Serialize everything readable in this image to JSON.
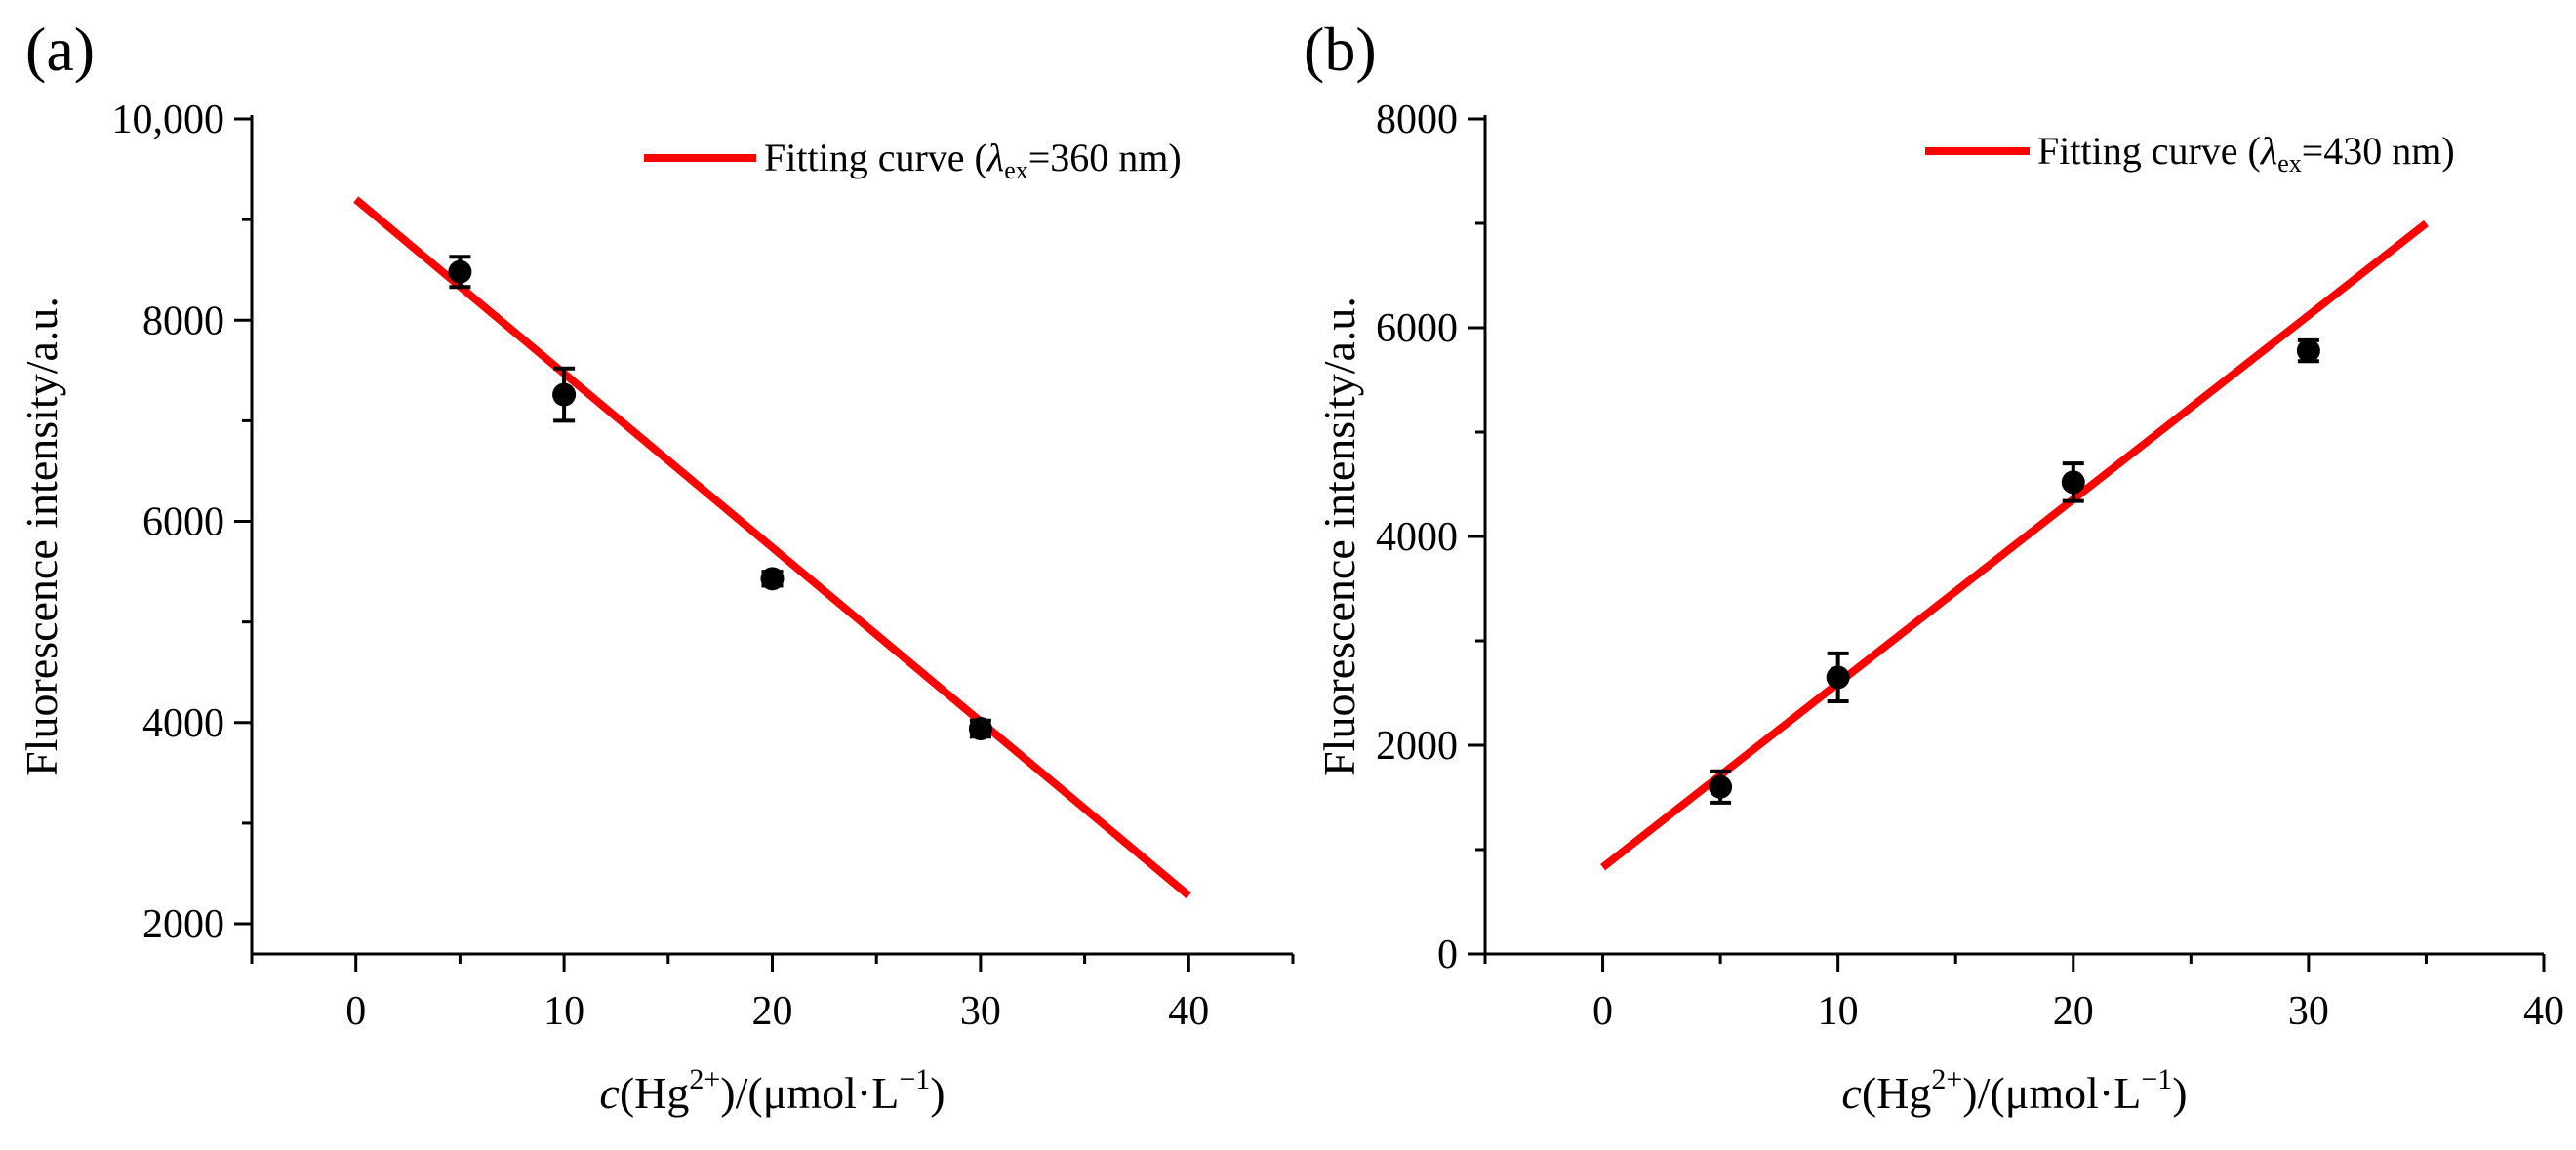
{
  "chart_data": [
    {
      "type": "scatter",
      "panel_label": "(a)",
      "title": "",
      "xlabel": {
        "italic": "c",
        "pre": "(Hg",
        "sup": "2+",
        "mid": ")/(μmol·L",
        "sup2": "−1",
        "post": ")"
      },
      "ylabel": "Fluorescence intensity/a.u.",
      "xlim": [
        -5,
        45
      ],
      "ylim": [
        1700,
        10000
      ],
      "xticks": [
        0,
        10,
        20,
        30,
        40
      ],
      "xtick_labels": [
        "0",
        "10",
        "20",
        "30",
        "40"
      ],
      "yticks": [
        2000,
        4000,
        6000,
        8000,
        10000
      ],
      "ytick_labels": [
        "2000",
        "4000",
        "6000",
        "8000",
        "10,000"
      ],
      "grid": false,
      "series": [
        {
          "name": "data",
          "kind": "scatter-errorbar",
          "color": "#000000",
          "x": [
            5,
            10,
            20,
            30
          ],
          "y": [
            8480,
            7260,
            5430,
            3940
          ],
          "err": [
            150,
            260,
            70,
            80
          ]
        },
        {
          "name": "Fitting curve",
          "kind": "line",
          "color": "#ff0000",
          "x": [
            0,
            40
          ],
          "y": [
            9200,
            2280
          ]
        }
      ],
      "legend": {
        "placement": "top-right",
        "text_pre": "Fitting curve (",
        "lambda": "λ",
        "sub": "ex",
        "text_post": "=360 nm)"
      }
    },
    {
      "type": "scatter",
      "panel_label": "(b)",
      "title": "",
      "xlabel": {
        "italic": "c",
        "pre": "(Hg",
        "sup": "2+",
        "mid": ")/(μmol·L",
        "sup2": "−1",
        "post": ")"
      },
      "ylabel": "Fluorescence intensity/a.u.",
      "xlim": [
        -5,
        40
      ],
      "ylim": [
        0,
        8000
      ],
      "xticks": [
        0,
        10,
        20,
        30,
        40
      ],
      "xtick_labels": [
        "0",
        "10",
        "20",
        "30",
        "40"
      ],
      "yticks": [
        0,
        2000,
        4000,
        6000,
        8000
      ],
      "ytick_labels": [
        "0",
        "2000",
        "4000",
        "6000",
        "8000"
      ],
      "grid": false,
      "series": [
        {
          "name": "data",
          "kind": "scatter-errorbar",
          "color": "#000000",
          "x": [
            5,
            10,
            20,
            30
          ],
          "y": [
            1600,
            2650,
            4520,
            5780
          ],
          "err": [
            150,
            230,
            180,
            100
          ]
        },
        {
          "name": "Fitting curve",
          "kind": "line",
          "color": "#ff0000",
          "x": [
            0,
            35
          ],
          "y": [
            830,
            7000
          ]
        }
      ],
      "legend": {
        "placement": "top-right",
        "text_pre": "Fitting curve (",
        "lambda": "λ",
        "sub": "ex",
        "text_post": "=430 nm)"
      }
    }
  ]
}
